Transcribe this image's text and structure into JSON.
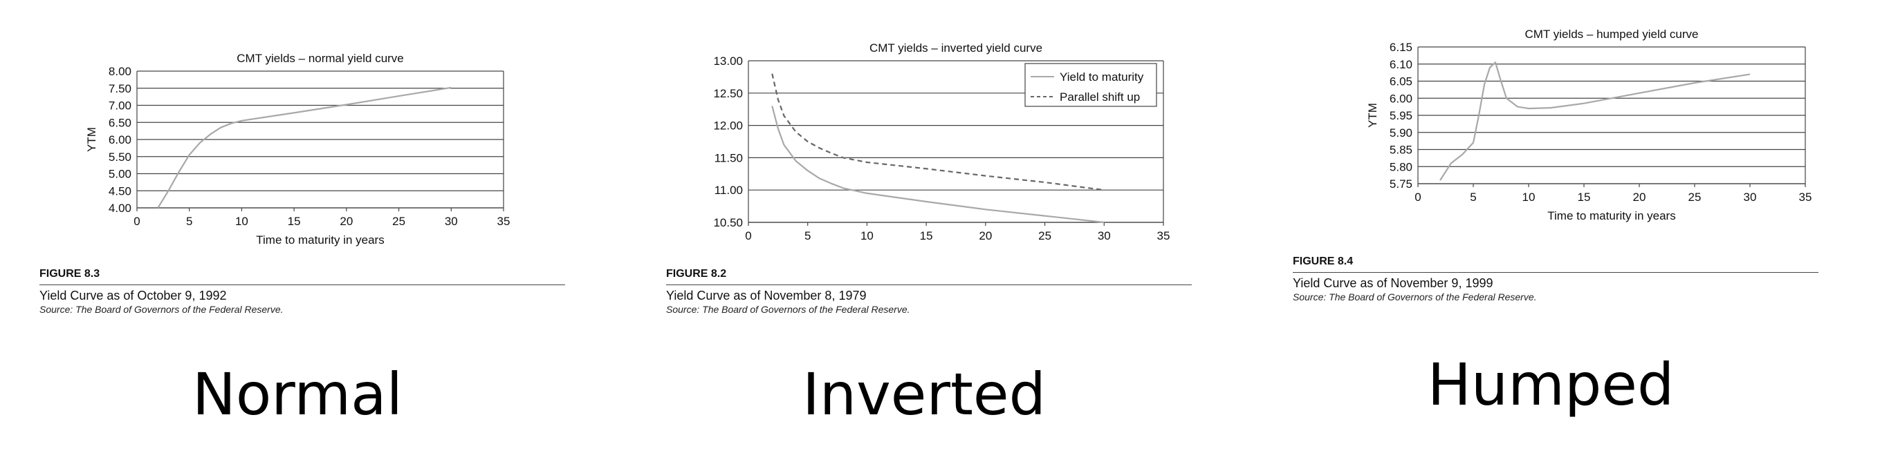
{
  "panels": [
    {
      "figure_label": "FIGURE 8.3",
      "caption": "Yield Curve as of October 9, 1992",
      "source": "Source: The Board of Governors of the Federal Reserve.",
      "big_label": "Normal"
    },
    {
      "figure_label": "FIGURE 8.2",
      "caption": "Yield Curve as of November 8, 1979",
      "source": "Source: The Board of Governors of the Federal Reserve.",
      "big_label": "Inverted"
    },
    {
      "figure_label": "FIGURE 8.4",
      "caption": "Yield Curve as of November 9, 1999",
      "source": "Source: The Board of Governors of the Federal Reserve.",
      "big_label": "Humped"
    }
  ],
  "chart_data": [
    {
      "type": "line",
      "title": "CMT yields – normal yield curve",
      "xlabel": "Time to maturity in years",
      "ylabel": "YTM",
      "xlim": [
        0,
        35
      ],
      "ylim": [
        4.0,
        8.0
      ],
      "xticks": [
        "0",
        "5",
        "10",
        "15",
        "20",
        "25",
        "30",
        "35"
      ],
      "yticks": [
        "8.00",
        "7.50",
        "7.00",
        "6.50",
        "6.00",
        "5.50",
        "5.00",
        "4.50",
        "4.00"
      ],
      "grid": "horizontal",
      "series": [
        {
          "color": "#a8a8a8",
          "dash": "none",
          "x": [
            2,
            3,
            4,
            5,
            6,
            7,
            8,
            9,
            10,
            15,
            20,
            25,
            30
          ],
          "y": [
            4.0,
            4.5,
            5.05,
            5.55,
            5.9,
            6.15,
            6.35,
            6.47,
            6.55,
            6.78,
            7.02,
            7.27,
            7.52
          ]
        }
      ]
    },
    {
      "type": "line",
      "title": "CMT yields – inverted yield curve",
      "xlabel": "",
      "ylabel": "",
      "xlim": [
        0,
        35
      ],
      "ylim": [
        10.5,
        13.0
      ],
      "xticks": [
        "0",
        "5",
        "10",
        "15",
        "20",
        "25",
        "30",
        "35"
      ],
      "yticks": [
        "13.00",
        "12.50",
        "12.00",
        "11.50",
        "11.00",
        "10.50"
      ],
      "grid": "horizontal",
      "legend": "top-right",
      "series": [
        {
          "name": "Yield to maturity",
          "color": "#a8a8a8",
          "dash": "none",
          "x": [
            2,
            2.5,
            3,
            4,
            5,
            6,
            7,
            8,
            10,
            15,
            20,
            25,
            30
          ],
          "y": [
            12.3,
            11.95,
            11.7,
            11.45,
            11.3,
            11.18,
            11.1,
            11.03,
            10.95,
            10.82,
            10.7,
            10.6,
            10.5
          ]
        },
        {
          "name": "Parallel shift up",
          "color": "#666666",
          "dash": "7 5",
          "x": [
            2,
            2.5,
            3,
            4,
            5,
            6,
            7,
            8,
            10,
            15,
            20,
            25,
            30
          ],
          "y": [
            12.8,
            12.4,
            12.15,
            11.9,
            11.75,
            11.65,
            11.57,
            11.5,
            11.43,
            11.33,
            11.22,
            11.12,
            11.0
          ]
        }
      ]
    },
    {
      "type": "line",
      "title": "CMT yields – humped yield curve",
      "xlabel": "Time to maturity in years",
      "ylabel": "YTM",
      "xlim": [
        0,
        35
      ],
      "ylim": [
        5.75,
        6.15
      ],
      "xticks": [
        "0",
        "5",
        "10",
        "15",
        "20",
        "25",
        "30",
        "35"
      ],
      "yticks": [
        "6.15",
        "6.10",
        "6.05",
        "6.00",
        "5.95",
        "5.90",
        "5.85",
        "5.80",
        "5.75"
      ],
      "grid": "horizontal",
      "series": [
        {
          "color": "#a8a8a8",
          "dash": "none",
          "x": [
            2,
            3,
            4,
            5,
            5.5,
            6,
            6.5,
            7,
            7.5,
            8,
            9,
            10,
            12,
            15,
            20,
            25,
            30
          ],
          "y": [
            5.76,
            5.81,
            5.835,
            5.87,
            5.95,
            6.04,
            6.09,
            6.105,
            6.05,
            6.0,
            5.975,
            5.97,
            5.972,
            5.985,
            6.015,
            6.045,
            6.07
          ]
        }
      ]
    }
  ]
}
